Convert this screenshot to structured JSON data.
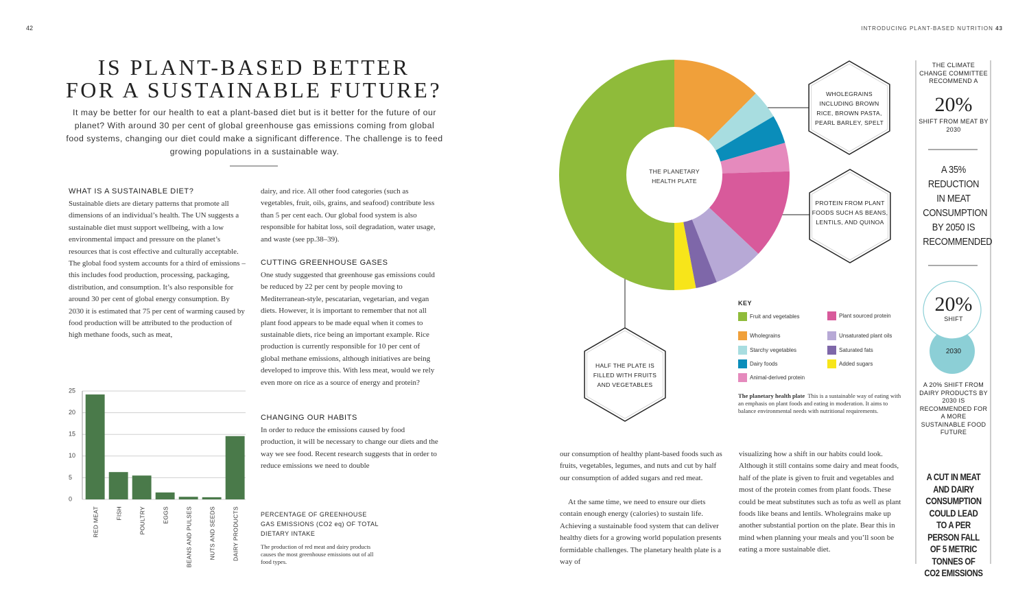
{
  "page_left": {
    "number": "42"
  },
  "page_right": {
    "running_head": "INTRODUCING PLANT-BASED NUTRITION",
    "number": "43"
  },
  "article": {
    "title": [
      "IS PLANT-BASED BETTER",
      "FOR A SUSTAINABLE FUTURE?"
    ],
    "intro": "It may be better for our health to eat a plant-based diet but is it better for the future of our planet? With around 30 per cent of global greenhouse gas emissions coming from global food systems, changing our diet could make a significant difference. The challenge is to feed growing populations in a sustainable way.",
    "sections": [
      {
        "heading": "WHAT IS A SUSTAINABLE DIET?",
        "body": [
          "Sustainable diets are dietary patterns that promote all dimensions of an individual’s health. The UN suggests a sustainable diet must support wellbeing, with a low environmental impact and pressure on the planet’s resources that is cost effective and culturally acceptable. The global food system accounts for a third of emissions – this includes food production, processing, packaging, distribution, and consumption. It’s also responsible for around 30 per cent of global energy consumption. By 2030 it is estimated that 75 per cent of warming caused by food production will be attributed to the production of high methane foods, such as meat,",
          "dairy, and rice. All other food categories (such as vegetables, fruit, oils, grains, and seafood) contribute less than 5 per cent each. Our global food system is also responsible for habitat loss, soil degradation, water usage, and waste (see pp.38–39)."
        ]
      },
      {
        "heading": "CUTTING GREENHOUSE GASES",
        "body": [
          "One study suggested that greenhouse gas emissions could be reduced by 22 per cent by people moving to Mediterranean-style, pescatarian, vegetarian, and vegan diets. However, it is important to remember that not all plant food appears to be made equal when it comes to sustainable diets, rice being an important example. Rice production is currently responsible for 10 per cent of global methane emissions, although initiatives are being developed to improve this. With less meat, would we rely even more on rice as a source of energy and protein?"
        ]
      },
      {
        "heading": "CHANGING OUR HABITS",
        "body": [
          "In order to reduce the emissions caused by food production, it will be necessary to change our diets and the way we see food. Recent research suggests that in order to reduce emissions we need to double",
          "our consumption of healthy plant-based foods such as fruits, vegetables, legumes, and nuts and cut by half our consumption of added sugars and red meat.",
          "At the same time, we need to ensure our diets contain enough energy (calories) to sustain life. Achieving a sustainable food system that can deliver healthy diets for a growing world population presents formidable challenges. The planetary health plate is a way of",
          "visualizing how a shift in our habits could look. Although it still contains some dairy and meat foods, half of the plate is given to fruit and vegetables and most of the protein comes from plant foods. These could be meat substitutes such as tofu as well as plant foods like beans and lentils. Wholegrains make up another substantial portion on the plate. Bear this in mind when planning your meals and you’ll soon be eating a more sustainable diet."
        ]
      }
    ]
  },
  "chart_data": [
    {
      "type": "bar",
      "caption_title": "PERCENTAGE OF GREENHOUSE GAS EMISSIONS (CO2 eq) OF TOTAL DIETARY INTAKE",
      "caption_note": "The production of red meat and dairy products causes the most greenhouse emissions out of all food types.",
      "categories": [
        "RED MEAT",
        "FISH",
        "POULTRY",
        "EGGS",
        "BEANS AND PULSES",
        "NUTS AND SEEDS",
        "DAIRY PRODUCTS"
      ],
      "values": [
        24.2,
        6.3,
        5.5,
        1.6,
        0.6,
        0.5,
        14.6
      ],
      "color": "#4a7a4a",
      "ylim": [
        0,
        25
      ],
      "yticks": [
        0,
        5,
        10,
        15,
        20,
        25
      ],
      "grid": true
    },
    {
      "type": "pie",
      "donut": true,
      "center_label": "THE PLANETARY HEALTH PLATE",
      "legend_title": "KEY",
      "categories": [
        "Wholegrains",
        "Starchy vegetables",
        "Dairy foods",
        "Animal-derived protein",
        "Plant sourced protein",
        "Unsaturated plant oils",
        "Saturated fats",
        "Added sugars",
        "Fruit and vegetables"
      ],
      "colors": [
        "#f0a03a",
        "#a8dde0",
        "#0a8dba",
        "#e58abd",
        "#d85a9b",
        "#b7a9d6",
        "#7e67a9",
        "#f7e51a",
        "#8fbb3a"
      ],
      "values": [
        12.5,
        4,
        4,
        4,
        12.5,
        7,
        3,
        3,
        50
      ],
      "callouts": [
        "WHOLEGRAINS INCLUDING BROWN RICE, BROWN PASTA, PEARL BARLEY, SPELT",
        "PROTEIN FROM PLANT FOODS SUCH AS BEANS, LENTILS, AND QUINOA",
        "HALF THE PLATE IS FILLED WITH FRUITS AND VEGETABLES"
      ],
      "caption_title": "The planetary health plate",
      "caption": "This is a sustainable way of eating with an emphasis on plant foods and eating in moderation. It aims to balance environmental needs with nutritional requirements."
    }
  ],
  "sidebar": {
    "stat1_lead": "THE CLIMATE CHANGE COMMITTEE RECOMMEND A",
    "stat1_figure": "20%",
    "stat1_tail": "SHIFT FROM MEAT BY 2030",
    "stat2": "A 35% REDUCTION IN MEAT CONSUMPTION BY 2050 IS RECOMMENDED",
    "stat3_figure": "20%",
    "stat3_label": "SHIFT",
    "stat3_year": "2030",
    "stat3_text": "A 20% SHIFT FROM DAIRY PRODUCTS BY 2030 IS RECOMMENDED FOR A MORE SUSTAINABLE FOOD FUTURE",
    "stat4": "A CUT IN MEAT AND DAIRY CONSUMPTION COULD LEAD TO A PER PERSON FALL OF 5 METRIC TONNES OF CO2 EMISSIONS"
  }
}
